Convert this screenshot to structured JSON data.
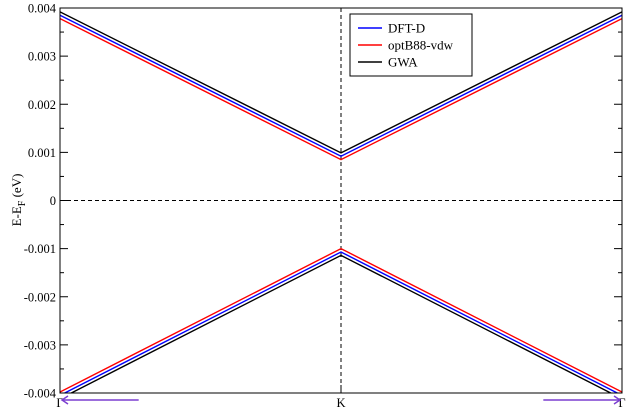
{
  "chart_data": {
    "type": "line",
    "ylabel": "E-E",
    "ylabel_subscript": "F",
    "ylabel_unit": "(eV)",
    "ylim": [
      -0.004,
      0.004
    ],
    "yticks": [
      "-0.004",
      "-0.003",
      "-0.002",
      "-0.001",
      "0",
      "0.001",
      "0.002",
      "0.003",
      "0.004"
    ],
    "ytick_values": [
      -0.004,
      -0.003,
      -0.002,
      -0.001,
      0,
      0.001,
      0.002,
      0.003,
      0.004
    ],
    "xlim": [
      -1,
      1
    ],
    "xticks": [
      "Γ",
      "K",
      "Γ"
    ],
    "xtick_values": [
      -1,
      0,
      1
    ],
    "legend_position": "top-center",
    "grid": false,
    "reference_lines": {
      "horizontal_zero": true,
      "vertical_at_K": true,
      "style": "dashed"
    },
    "arrows": [
      {
        "from": -0.72,
        "to": -1,
        "color": "#7b3fd0"
      },
      {
        "from": 0.72,
        "to": 1,
        "color": "#7b3fd0"
      }
    ],
    "series": [
      {
        "name": "DFT-D",
        "color": "#0000ff",
        "bands": [
          {
            "x": [
              -1,
              0,
              1
            ],
            "y": [
              0.00385,
              0.00092,
              0.00385
            ]
          },
          {
            "x": [
              -1,
              0,
              1
            ],
            "y": [
              -0.00405,
              -0.00107,
              -0.00405
            ]
          }
        ]
      },
      {
        "name": "optB88-vdw",
        "color": "#ff0000",
        "bands": [
          {
            "x": [
              -1,
              0,
              1
            ],
            "y": [
              0.00378,
              0.00085,
              0.00378
            ]
          },
          {
            "x": [
              -1,
              0,
              1
            ],
            "y": [
              -0.00398,
              -0.001,
              -0.00398
            ]
          }
        ]
      },
      {
        "name": "GWA",
        "color": "#000000",
        "bands": [
          {
            "x": [
              -1,
              0,
              1
            ],
            "y": [
              0.00392,
              0.00099,
              0.00392
            ]
          },
          {
            "x": [
              -1,
              0,
              1
            ],
            "y": [
              -0.00412,
              -0.00114,
              -0.00412
            ]
          }
        ]
      }
    ]
  }
}
